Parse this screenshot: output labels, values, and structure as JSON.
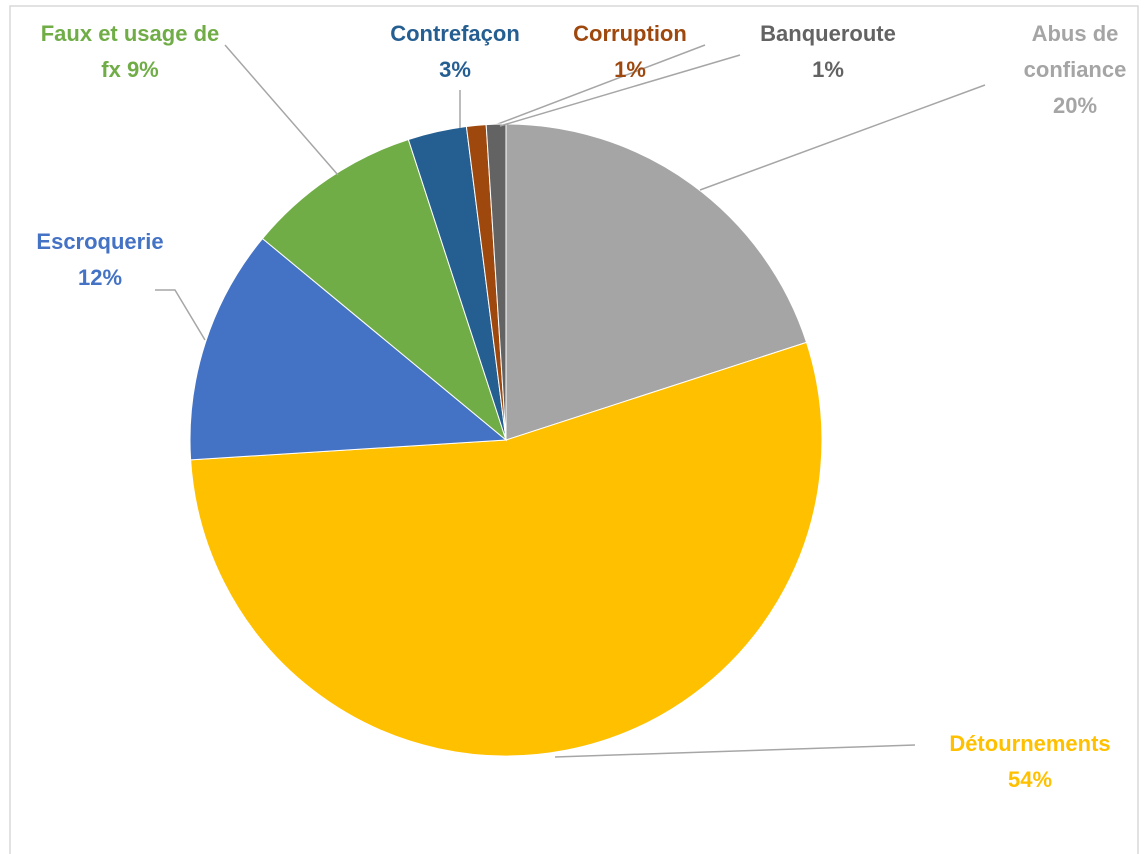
{
  "chart_data": {
    "type": "pie",
    "categories": [
      "Abus de confiance",
      "Détournements",
      "Escroquerie",
      "Faux et usage de fx",
      "Contrefaçon",
      "Corruption",
      "Banqueroute"
    ],
    "values": [
      20,
      54,
      12,
      9,
      3,
      1,
      1
    ],
    "value_labels": [
      "20%",
      "54%",
      "12%",
      "9%",
      "3%",
      "1%",
      "1%"
    ],
    "colors": [
      "#a5a5a5",
      "#ffc000",
      "#4472c4",
      "#70ad47",
      "#255e91",
      "#9e480e",
      "#636363"
    ]
  }
}
